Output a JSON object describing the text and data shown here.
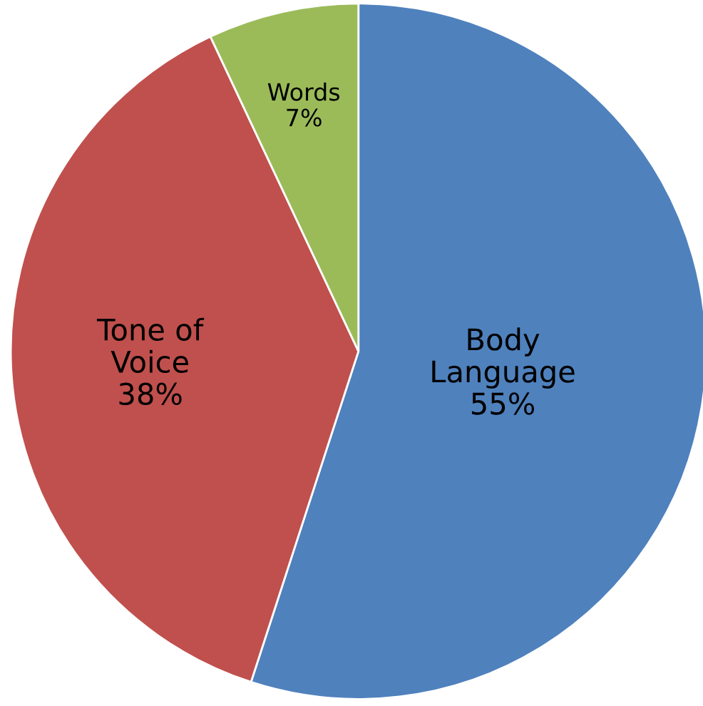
{
  "chart_data": {
    "type": "pie",
    "categories": [
      "Body\nLanguage",
      "Tone of\nVoice",
      "Words"
    ],
    "values": [
      55,
      38,
      7
    ],
    "colors": [
      "#4f81bd",
      "#c0504d",
      "#9bbb59"
    ],
    "value_labels": [
      "55%",
      "38%",
      "7%"
    ],
    "legend": false
  }
}
